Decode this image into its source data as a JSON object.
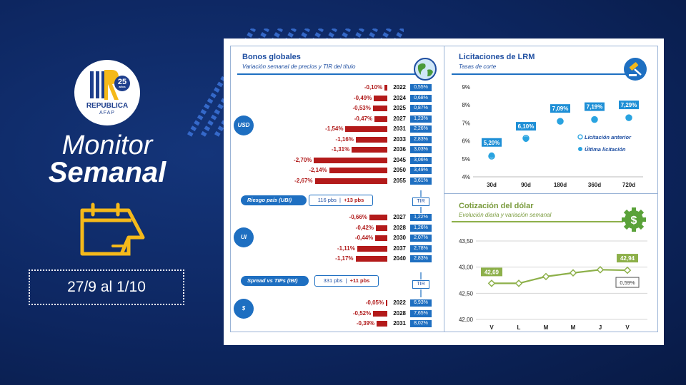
{
  "left": {
    "logo": {
      "badge": "25",
      "badge_sub": "años",
      "brand": "REPUBLICA",
      "brand_sub": "AFAP"
    },
    "title_line1": "Monitor",
    "title_line2": "Semanal",
    "date_range": "27/9 al 1/10"
  },
  "bonos": {
    "title": "Bonos globales",
    "subtitle": "Variación semanal de precios y TIR del título",
    "riesgo": {
      "label": "Riesgo país (UBI)",
      "value": "116 pbs",
      "change": "+13 pbs"
    },
    "spread": {
      "label": "Spread vs TIPs (IBI)",
      "value": "331 pbs",
      "change": "+11 pbs"
    },
    "tir_label": "TIR",
    "groups": [
      {
        "name": "USD",
        "rows": [
          {
            "year": "2022",
            "pct": "-0,10%",
            "v": -0.1,
            "tir": "0,55%"
          },
          {
            "year": "2024",
            "pct": "-0,49%",
            "v": -0.49,
            "tir": "0,68%"
          },
          {
            "year": "2025",
            "pct": "-0,53%",
            "v": -0.53,
            "tir": "0,87%"
          },
          {
            "year": "2027",
            "pct": "-0,47%",
            "v": -0.47,
            "tir": "1,23%"
          },
          {
            "year": "2031",
            "pct": "-1,54%",
            "v": -1.54,
            "tir": "2,26%"
          },
          {
            "year": "2033",
            "pct": "-1,16%",
            "v": -1.16,
            "tir": "2,83%"
          },
          {
            "year": "2036",
            "pct": "-1,31%",
            "v": -1.31,
            "tir": "3,03%"
          },
          {
            "year": "2045",
            "pct": "-2,70%",
            "v": -2.7,
            "tir": "3,06%"
          },
          {
            "year": "2050",
            "pct": "-2,14%",
            "v": -2.14,
            "tir": "3,49%"
          },
          {
            "year": "2055",
            "pct": "-2,67%",
            "v": -2.67,
            "tir": "3,61%"
          }
        ]
      },
      {
        "name": "UI",
        "rows": [
          {
            "year": "2027",
            "pct": "-0,66%",
            "v": -0.66,
            "tir": "1,22%"
          },
          {
            "year": "2028",
            "pct": "-0,42%",
            "v": -0.42,
            "tir": "1,26%"
          },
          {
            "year": "2030",
            "pct": "-0,44%",
            "v": -0.44,
            "tir": "2,07%"
          },
          {
            "year": "2037",
            "pct": "-1,11%",
            "v": -1.11,
            "tir": "2,78%"
          },
          {
            "year": "2040",
            "pct": "-1,17%",
            "v": -1.17,
            "tir": "2,83%"
          }
        ]
      },
      {
        "name": "$",
        "rows": [
          {
            "year": "2022",
            "pct": "-0,05%",
            "v": -0.05,
            "tir": "6,93%"
          },
          {
            "year": "2028",
            "pct": "-0,52%",
            "v": -0.52,
            "tir": "7,65%"
          },
          {
            "year": "2031",
            "pct": "-0,39%",
            "v": -0.39,
            "tir": "8,02%"
          }
        ]
      }
    ]
  },
  "lrm": {
    "title": "Licitaciones de LRM",
    "subtitle": "Tasas de corte",
    "legend_prev": "Licitación anterior",
    "legend_last": "Última licitación",
    "data_labels": [
      "5,20%",
      "6,10%",
      "7,09%",
      "7,19%",
      "7,29%"
    ],
    "y_ticks": [
      "9%",
      "8%",
      "7%",
      "6%",
      "5%",
      "4%"
    ]
  },
  "dolar": {
    "title": "Cotización del dólar",
    "subtitle": "Evolución diaria y variación semanal",
    "first_label": "42,69",
    "last_label": "42,94",
    "variation": "0,59%",
    "y_ticks": [
      "43,50",
      "43,00",
      "42,50",
      "42,00"
    ]
  },
  "colors": {
    "navy": "#0d2660",
    "accent_blue": "#1e6fc1",
    "bar_red": "#b31a1a",
    "green": "#8db04a",
    "point_blue": "#29a3e0",
    "logo_yellow": "#f5b91a"
  },
  "chart_data": [
    {
      "type": "bar",
      "title": "Bonos globales",
      "subtitle": "Variación semanal de precios y TIR del título",
      "categories": [
        "USD 2022",
        "USD 2024",
        "USD 2025",
        "USD 2027",
        "USD 2031",
        "USD 2033",
        "USD 2036",
        "USD 2045",
        "USD 2050",
        "USD 2055",
        "UI 2027",
        "UI 2028",
        "UI 2030",
        "UI 2037",
        "UI 2040",
        "$ 2022",
        "$ 2028",
        "$ 2031"
      ],
      "series": [
        {
          "name": "",
          "values": [
            -0.1,
            -0.49,
            -0.53,
            -0.47,
            -1.54,
            -1.16,
            -1.31,
            -2.7,
            -2.14,
            -2.67,
            -0.66,
            -0.42,
            -0.44,
            -1.11,
            -1.17,
            -0.05,
            -0.52,
            -0.39
          ]
        }
      ],
      "tir": [
        0.55,
        0.68,
        0.87,
        1.23,
        2.26,
        2.83,
        3.03,
        3.06,
        3.49,
        3.61,
        1.22,
        1.26,
        2.07,
        2.78,
        2.83,
        6.93,
        7.65,
        8.02
      ],
      "orientation": "horizontal"
    },
    {
      "type": "scatter",
      "title": "Licitaciones de LRM",
      "subtitle": "Tasas de corte",
      "categories": [
        "30d",
        "90d",
        "180d",
        "360d",
        "720d"
      ],
      "series": [
        {
          "name": "Licitación anterior",
          "values": [
            5.15,
            6.15,
            7.09,
            7.19,
            7.29
          ]
        },
        {
          "name": "Última licitación",
          "values": [
            5.2,
            6.1,
            7.09,
            7.19,
            7.29
          ]
        }
      ],
      "ylim": [
        4,
        9
      ],
      "legend": "right"
    },
    {
      "type": "line",
      "title": "Cotización del dólar",
      "subtitle": "Evolución diaria y variación semanal",
      "categories": [
        "V",
        "L",
        "M",
        "M",
        "J",
        "V"
      ],
      "values": [
        42.69,
        42.69,
        42.82,
        42.89,
        42.95,
        42.94
      ],
      "ylim": [
        42.0,
        43.5
      ],
      "grid": true
    }
  ]
}
